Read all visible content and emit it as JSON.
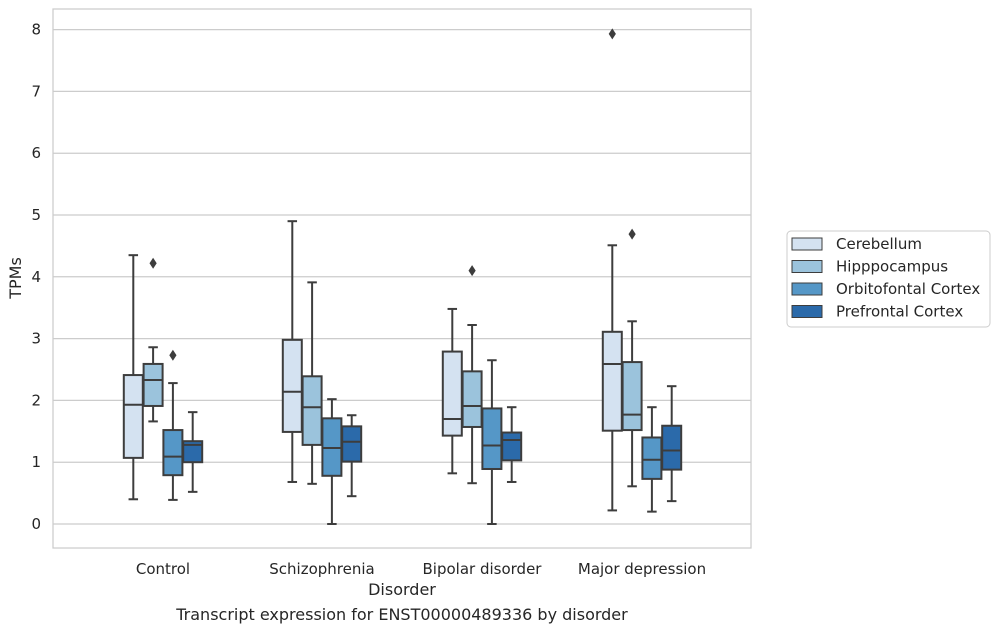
{
  "caption": "Transcript expression for ENST00000489336 by disorder",
  "chart_data": {
    "type": "box",
    "xlabel": "Disorder",
    "ylabel": "TPMs",
    "ylim": [
      -0.4,
      8.35
    ],
    "yticks": [
      0,
      1,
      2,
      3,
      4,
      5,
      6,
      7,
      8
    ],
    "grid": "horizontal",
    "legend_position": "right",
    "categories": [
      "Control",
      "Schizophrenia",
      "Bipolar disorder",
      "Major depression"
    ],
    "series": [
      {
        "name": "Cerebellum",
        "color": "#d4e2f1",
        "boxes": [
          {
            "whisker_low": 0.4,
            "q1": 1.07,
            "median": 1.93,
            "q3": 2.41,
            "whisker_high": 4.35,
            "outliers": []
          },
          {
            "whisker_low": 0.68,
            "q1": 1.49,
            "median": 2.14,
            "q3": 2.98,
            "whisker_high": 4.9,
            "outliers": []
          },
          {
            "whisker_low": 0.82,
            "q1": 1.43,
            "median": 1.7,
            "q3": 2.79,
            "whisker_high": 3.48,
            "outliers": []
          },
          {
            "whisker_low": 0.22,
            "q1": 1.51,
            "median": 2.59,
            "q3": 3.11,
            "whisker_high": 4.51,
            "outliers": [
              7.93
            ]
          }
        ]
      },
      {
        "name": "Hipppocampus",
        "color": "#9bc3dc",
        "boxes": [
          {
            "whisker_low": 1.66,
            "q1": 1.91,
            "median": 2.33,
            "q3": 2.59,
            "whisker_high": 2.86,
            "outliers": [
              4.22
            ]
          },
          {
            "whisker_low": 0.65,
            "q1": 1.28,
            "median": 1.89,
            "q3": 2.39,
            "whisker_high": 3.91,
            "outliers": []
          },
          {
            "whisker_low": 0.66,
            "q1": 1.57,
            "median": 1.91,
            "q3": 2.47,
            "whisker_high": 3.22,
            "outliers": [
              4.1
            ]
          },
          {
            "whisker_low": 0.61,
            "q1": 1.52,
            "median": 1.77,
            "q3": 2.62,
            "whisker_high": 3.28,
            "outliers": [
              4.69
            ]
          }
        ]
      },
      {
        "name": "Orbitofontal Cortex",
        "color": "#5597c7",
        "boxes": [
          {
            "whisker_low": 0.39,
            "q1": 0.79,
            "median": 1.09,
            "q3": 1.52,
            "whisker_high": 2.28,
            "outliers": [
              2.73
            ]
          },
          {
            "whisker_low": 0.0,
            "q1": 0.78,
            "median": 1.23,
            "q3": 1.71,
            "whisker_high": 2.02,
            "outliers": []
          },
          {
            "whisker_low": 0.0,
            "q1": 0.89,
            "median": 1.27,
            "q3": 1.87,
            "whisker_high": 2.65,
            "outliers": []
          },
          {
            "whisker_low": 0.2,
            "q1": 0.73,
            "median": 1.04,
            "q3": 1.4,
            "whisker_high": 1.89,
            "outliers": []
          }
        ]
      },
      {
        "name": "Prefrontal Cortex",
        "color": "#2b6aaa",
        "boxes": [
          {
            "whisker_low": 0.52,
            "q1": 1.0,
            "median": 1.28,
            "q3": 1.34,
            "whisker_high": 1.81,
            "outliers": []
          },
          {
            "whisker_low": 0.45,
            "q1": 1.01,
            "median": 1.33,
            "q3": 1.58,
            "whisker_high": 1.76,
            "outliers": []
          },
          {
            "whisker_low": 0.68,
            "q1": 1.03,
            "median": 1.36,
            "q3": 1.48,
            "whisker_high": 1.89,
            "outliers": []
          },
          {
            "whisker_low": 0.37,
            "q1": 0.88,
            "median": 1.19,
            "q3": 1.59,
            "whisker_high": 2.23,
            "outliers": []
          }
        ]
      }
    ]
  }
}
